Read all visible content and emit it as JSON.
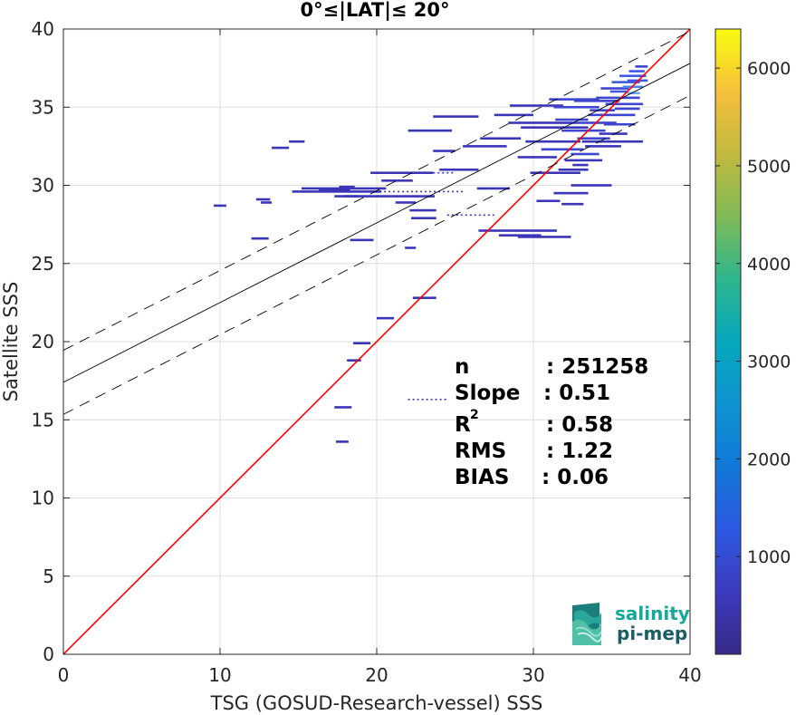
{
  "chart_data": {
    "type": "heatmap",
    "title": "0°≤|LAT|≤ 20°",
    "xlabel": "TSG (GOSUD-Research-vessel) SSS",
    "ylabel": "Satellite SSS",
    "xlim": [
      0,
      40
    ],
    "ylim": [
      0,
      40
    ],
    "xticks": [
      "0",
      "10",
      "20",
      "30",
      "40"
    ],
    "yticks": [
      "0",
      "5",
      "10",
      "15",
      "20",
      "25",
      "30",
      "35",
      "40"
    ],
    "grid": true,
    "colorbar": {
      "range": [
        0,
        6400
      ],
      "ticks": [
        "1000",
        "2000",
        "3000",
        "4000",
        "5000",
        "6000"
      ],
      "colormap": "parula"
    },
    "lines": {
      "one_to_one": {
        "from": [
          0,
          0
        ],
        "to": [
          40,
          40
        ],
        "color": "#ff0000"
      },
      "regression": {
        "intercept": 17.4,
        "slope": 0.51,
        "color": "#000000"
      },
      "confidence_offset": 2.05
    },
    "density_segments": [
      [
        9.6,
        10.4,
        28.7,
        1
      ],
      [
        12.3,
        13.2,
        29.1,
        1
      ],
      [
        12.6,
        13.3,
        28.9,
        1
      ],
      [
        12.0,
        13.1,
        26.6,
        1
      ],
      [
        13.3,
        14.4,
        32.4,
        1
      ],
      [
        14.4,
        15.4,
        32.8,
        1
      ],
      [
        14.6,
        20.3,
        29.6,
        1
      ],
      [
        15.2,
        20.6,
        29.8,
        1
      ],
      [
        17.3,
        18.8,
        29.3,
        1
      ],
      [
        17.9,
        23.7,
        29.3,
        1
      ],
      [
        17.6,
        18.6,
        29.9,
        1
      ],
      [
        16.3,
        18.3,
        29.7,
        1
      ],
      [
        18.3,
        19.8,
        26.5,
        1
      ],
      [
        18.1,
        19.0,
        18.8,
        1
      ],
      [
        18.5,
        19.6,
        19.9,
        1
      ],
      [
        17.3,
        18.4,
        15.8,
        1
      ],
      [
        17.4,
        18.2,
        13.6,
        1
      ],
      [
        20.0,
        21.1,
        21.5,
        1
      ],
      [
        21.8,
        22.5,
        26.0,
        1
      ],
      [
        22.2,
        23.8,
        27.9,
        1
      ],
      [
        22.1,
        23.8,
        28.4,
        1
      ],
      [
        22.3,
        23.8,
        22.8,
        1
      ],
      [
        21.2,
        22.5,
        28.9,
        1
      ],
      [
        19.6,
        23.6,
        30.8,
        1
      ],
      [
        20.3,
        22.3,
        30.3,
        1
      ],
      [
        22.0,
        24.8,
        33.5,
        1
      ],
      [
        23.6,
        25.0,
        32.2,
        1
      ],
      [
        24.0,
        26.5,
        31.0,
        1
      ],
      [
        25.5,
        28.3,
        32.5,
        1
      ],
      [
        26.4,
        28.5,
        29.8,
        1
      ],
      [
        26.5,
        31.5,
        27.1,
        1
      ],
      [
        27.8,
        30.5,
        26.8,
        1
      ],
      [
        29.0,
        32.4,
        26.7,
        1
      ],
      [
        23.6,
        26.5,
        34.4,
        1
      ],
      [
        26.6,
        29.2,
        33.0,
        1
      ],
      [
        27.5,
        30.0,
        34.5,
        1
      ],
      [
        28.4,
        32.5,
        34.0,
        1
      ],
      [
        28.5,
        31.9,
        35.1,
        1
      ],
      [
        29.2,
        33.5,
        33.7,
        1
      ],
      [
        29.5,
        33.0,
        32.8,
        1
      ],
      [
        29.0,
        31.5,
        31.8,
        1
      ],
      [
        29.8,
        33.0,
        30.8,
        1
      ],
      [
        30.5,
        33.2,
        32.3,
        2
      ],
      [
        31.4,
        33.5,
        34.2,
        2
      ],
      [
        31.0,
        34.2,
        35.5,
        2
      ],
      [
        31.3,
        34.2,
        35.0,
        2
      ],
      [
        32.0,
        35.3,
        34.0,
        2
      ],
      [
        31.8,
        34.6,
        33.5,
        2
      ],
      [
        32.4,
        34.2,
        32.0,
        2
      ],
      [
        32.0,
        34.4,
        31.6,
        1
      ],
      [
        33.1,
        37.0,
        32.8,
        1
      ],
      [
        31.6,
        33.5,
        31.0,
        1
      ],
      [
        32.4,
        35.0,
        30.0,
        1
      ],
      [
        31.3,
        33.5,
        29.5,
        1
      ],
      [
        30.2,
        31.7,
        29.0,
        1
      ],
      [
        31.8,
        33.2,
        28.8,
        1
      ],
      [
        34.3,
        36.1,
        36.2,
        2
      ],
      [
        34.0,
        36.8,
        35.6,
        2
      ],
      [
        34.6,
        37.0,
        35.2,
        2
      ],
      [
        35.0,
        36.8,
        36.6,
        3
      ],
      [
        35.5,
        37.2,
        37.0,
        3
      ],
      [
        35.7,
        37.0,
        36.3,
        4
      ],
      [
        36.0,
        36.8,
        35.9,
        5
      ],
      [
        36.1,
        37.1,
        37.3,
        3
      ],
      [
        33.6,
        35.2,
        34.8,
        2
      ],
      [
        32.8,
        34.9,
        33.0,
        2
      ],
      [
        33.5,
        36.5,
        34.5,
        2
      ],
      [
        34.5,
        36.5,
        33.9,
        2
      ],
      [
        35.2,
        36.8,
        34.9,
        2
      ],
      [
        32.6,
        35.5,
        35.4,
        2
      ],
      [
        34.9,
        36.0,
        36.0,
        3
      ],
      [
        36.5,
        37.3,
        37.6,
        2
      ],
      [
        32.5,
        33.5,
        31.3,
        1
      ],
      [
        34.2,
        36.0,
        33.3,
        1
      ],
      [
        33.3,
        35.6,
        32.5,
        1
      ],
      [
        36.0,
        37.3,
        36.7,
        3
      ]
    ],
    "sparse_segments": [
      [
        21.0,
        25.0,
        30.8
      ],
      [
        22.0,
        24.5,
        16.3
      ],
      [
        17.0,
        25.5,
        29.6
      ],
      [
        24.5,
        27.5,
        28.1
      ]
    ]
  },
  "stats": [
    {
      "label": "n",
      "value": ": 251258",
      "sup": ""
    },
    {
      "label": "Slope",
      "value": ": 0.51",
      "sup": ""
    },
    {
      "label": "R",
      "value": ": 0.58",
      "sup": "2"
    },
    {
      "label": "RMS",
      "value": ": 1.22",
      "sup": ""
    },
    {
      "label": "BIAS",
      "value": ": 0.06",
      "sup": ""
    }
  ],
  "logo": {
    "line1": "salinity",
    "line2": "pi-mep",
    "color1": "#14a89a",
    "color2": "#1b5e63"
  }
}
